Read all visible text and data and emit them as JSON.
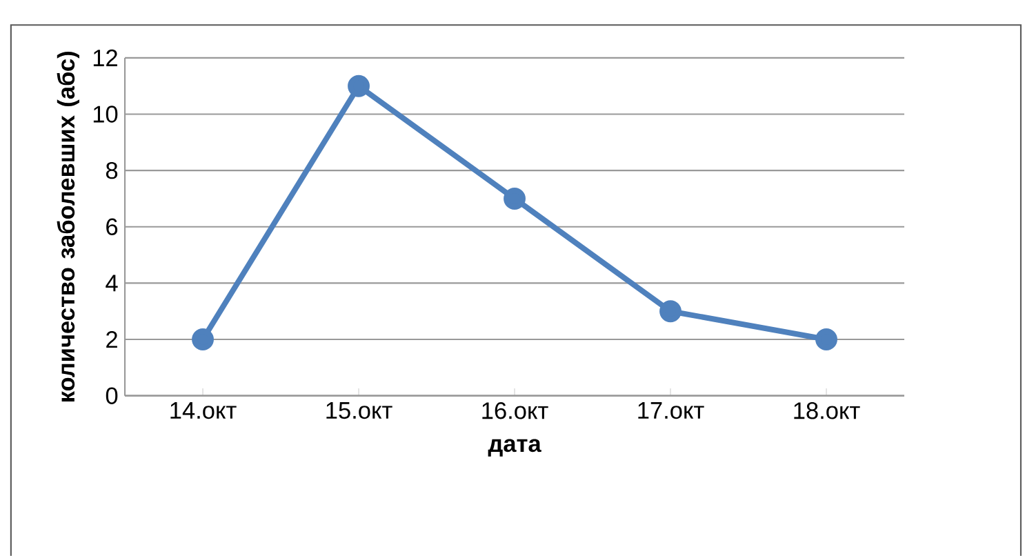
{
  "chart_data": {
    "type": "line",
    "xlabel": "дата",
    "ylabel": "количество заболевших (абс)",
    "categories": [
      "14.окт",
      "15.окт",
      "16.окт",
      "17.окт",
      "18.окт"
    ],
    "series": [
      {
        "color": "#4f81bd",
        "values": [
          2,
          11,
          7,
          3,
          2
        ]
      }
    ],
    "ylim": [
      0,
      12
    ],
    "yticks": [
      0,
      2,
      4,
      6,
      8,
      10,
      12
    ],
    "grid": "y",
    "marker": "circle"
  }
}
